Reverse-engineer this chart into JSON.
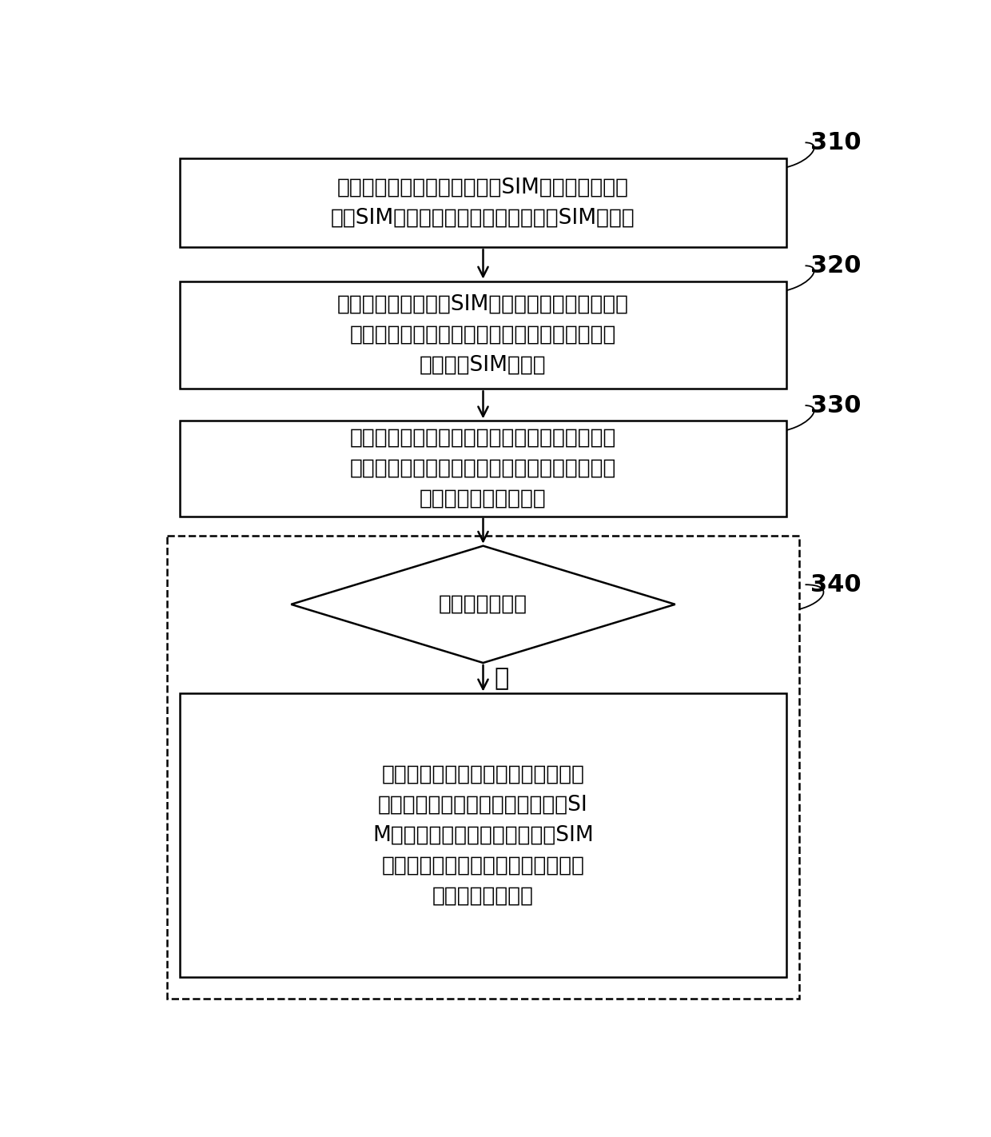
{
  "bg_color": "#ffffff",
  "box_edge_color": "#000000",
  "text_color": "#000000",
  "font_size": 19,
  "step_label_font_size": 22,
  "yes_font_size": 22,
  "box1_text": "接收第一终端发送的订购虚拟SIM卡的请求，订购\n虚拟SIM卡的请求包括用户标识和虚拟SIM卡标识",
  "box2_text": "根据用户标识和虚拟SIM卡标识生成订单，并将订\n单的订单编号发送给第一终端，订单包括用户标\n识和虚拟SIM卡标识",
  "box3_text": "接收第三方支付服务器根据第一终端发送的支付\n请求反馈的支付结果通知，支付请求和支付结果\n通知中均包括订单编号",
  "diamond_text": "终端支付成功？",
  "yes_label": "是",
  "box4_text": "根据支付结果通知中的订单编号，获\n取相应的订单中的用户标识和虚拟SI\nM卡标识，建立用户标识和虚拟SIM\n卡标识之间的订购关系，向第一终端\n发送订购成功消息",
  "step_labels": [
    "310",
    "320",
    "330",
    "340"
  ]
}
